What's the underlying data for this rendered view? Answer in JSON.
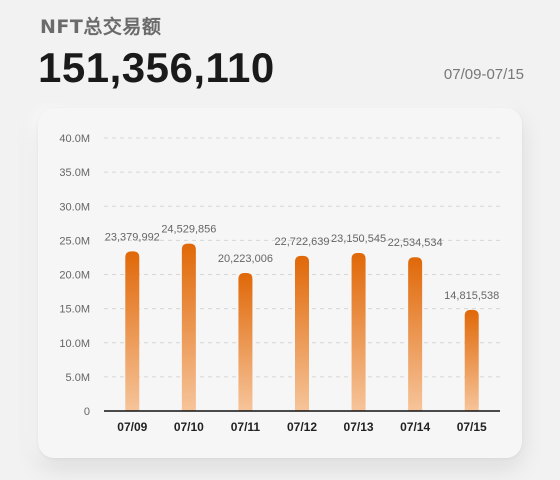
{
  "header": {
    "title": "NFT总交易额",
    "total": "151,356,110",
    "date_range": "07/09-07/15"
  },
  "colors": {
    "bar_top": "#e06808",
    "bar_bottom": "#f6c49a",
    "axis": "#111111",
    "grid": "#d6d6d6",
    "tick_text": "#666666",
    "label_text": "#666666"
  },
  "chart_data": {
    "type": "bar",
    "categories": [
      "07/09",
      "07/10",
      "07/11",
      "07/12",
      "07/13",
      "07/14",
      "07/15"
    ],
    "values": [
      23379992,
      24529856,
      20223006,
      22722639,
      23150545,
      22534534,
      14815538
    ],
    "data_labels": [
      "23,379,992",
      "24,529,856",
      "20,223,006",
      "22,722,639",
      "23,150,545",
      "22,534,534",
      "14,815,538"
    ],
    "y_ticks": [
      0,
      5000000,
      10000000,
      15000000,
      20000000,
      25000000,
      30000000,
      35000000,
      40000000
    ],
    "y_tick_labels": [
      "0",
      "5.0M",
      "10.0M",
      "15.0M",
      "20.0M",
      "25.0M",
      "30.0M",
      "35.0M",
      "40.0M"
    ],
    "ylim": [
      0,
      40000000
    ],
    "grid": true
  }
}
